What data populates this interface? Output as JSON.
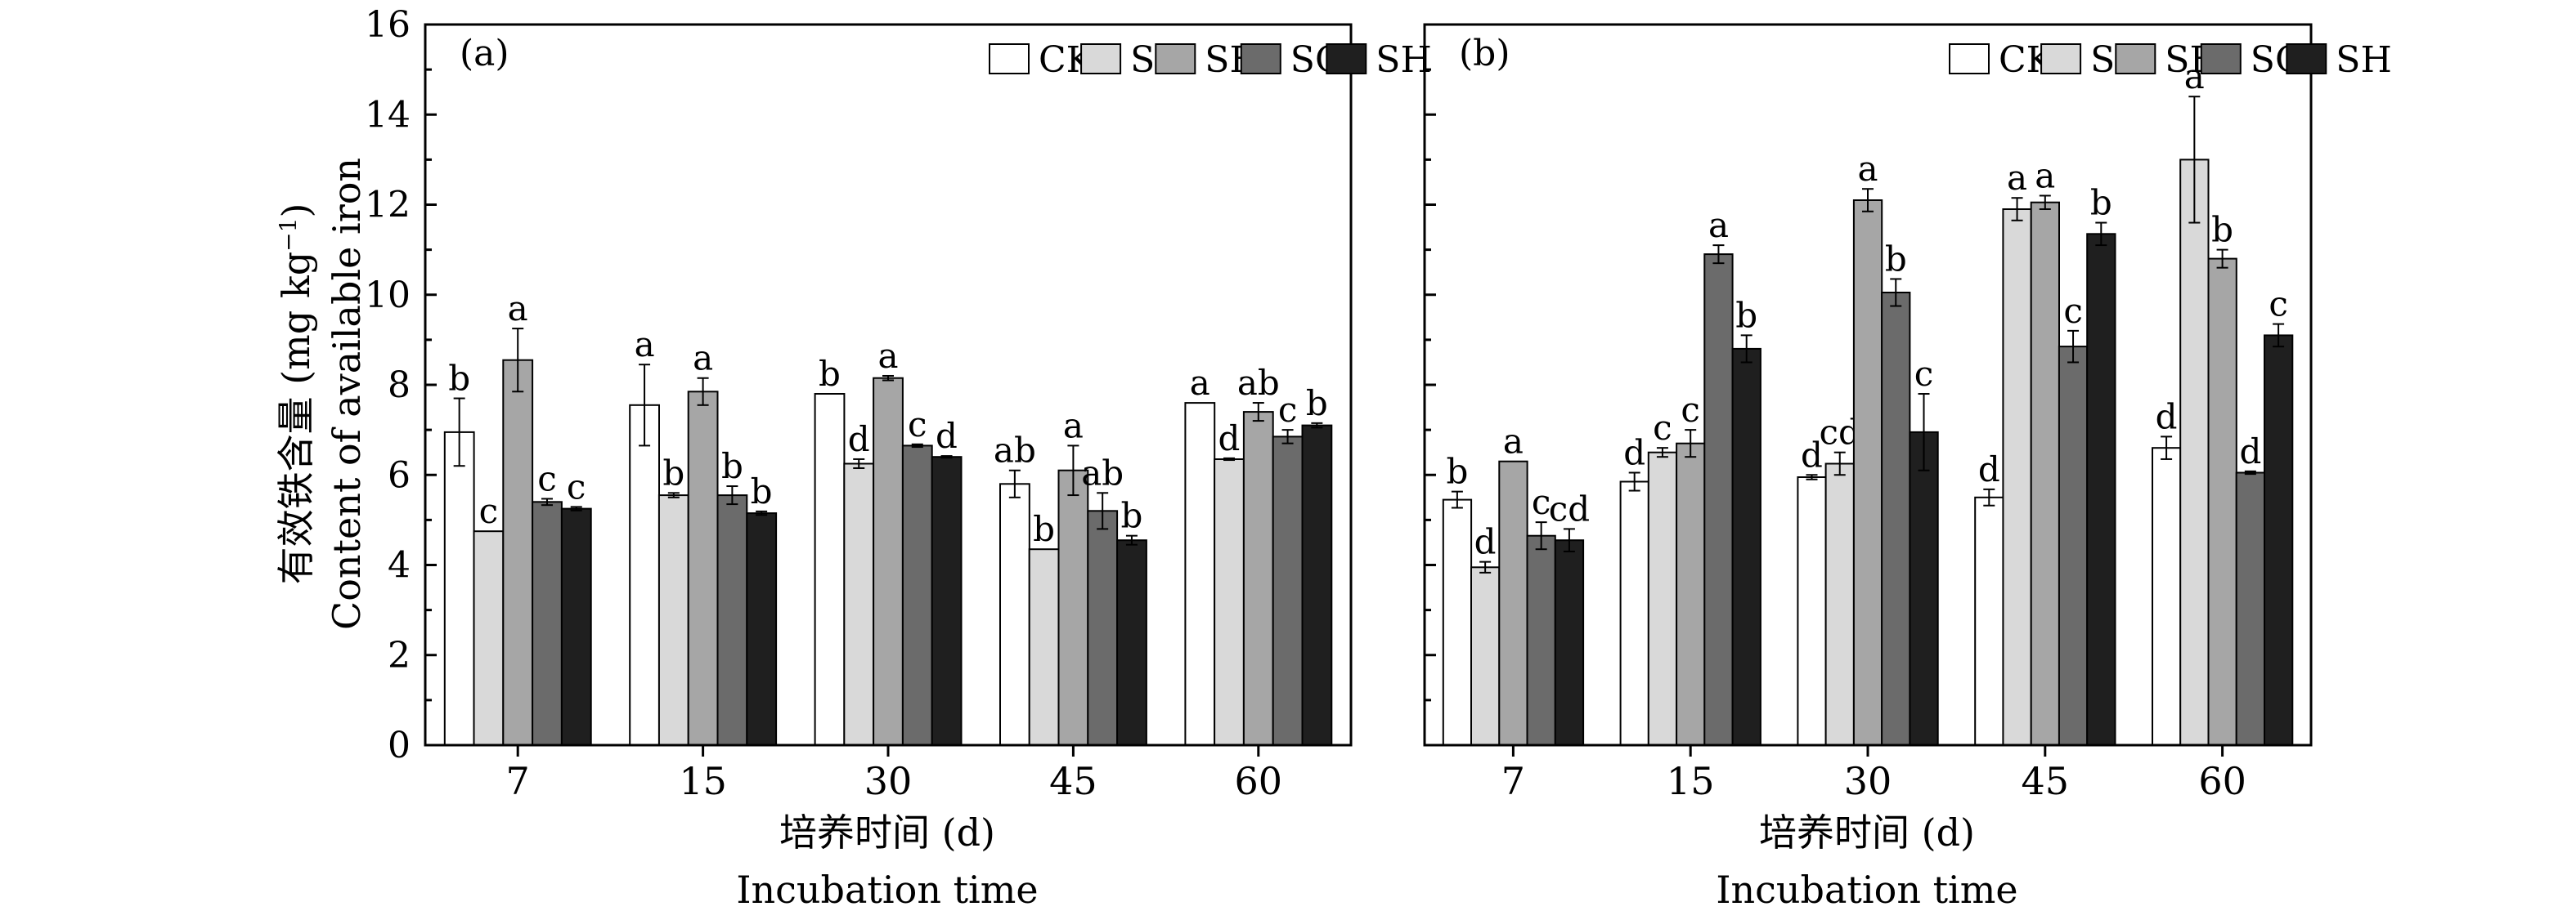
{
  "chart_data": {
    "type": "bar",
    "ylabel_cn": "有效铁含量 (mg kg",
    "ylabel_sup": "−1",
    "ylabel_close": ")",
    "ylabel_en": "Content of available iron",
    "xlabel_cn": "培养时间 (d)",
    "xlabel_en": "Incubation time",
    "ylim": [
      0,
      16
    ],
    "yticks": [
      "0",
      "2",
      "4",
      "6",
      "8",
      "10",
      "12",
      "14",
      "16"
    ],
    "categories": [
      "7",
      "15",
      "30",
      "45",
      "60"
    ],
    "legend_placement": "top-right",
    "legend": [
      {
        "name": "CK",
        "color": "#ffffff"
      },
      {
        "name": "S",
        "color": "#d9d9d9"
      },
      {
        "name": "SF",
        "color": "#a6a6a6"
      },
      {
        "name": "SG",
        "color": "#6b6b6b"
      },
      {
        "name": "SH",
        "color": "#1f1f1f"
      }
    ],
    "panels": [
      {
        "label": "(a)",
        "series": [
          {
            "name": "CK",
            "values": [
              6.95,
              7.55,
              7.8,
              5.8,
              7.6
            ],
            "errors": [
              0.75,
              0.9,
              0.0,
              0.3,
              0.0
            ],
            "letters": [
              "b",
              "a",
              "b",
              "ab",
              "a"
            ]
          },
          {
            "name": "S",
            "values": [
              4.75,
              5.55,
              6.25,
              4.35,
              6.35
            ],
            "errors": [
              0.0,
              0.05,
              0.1,
              0.0,
              0.02
            ],
            "letters": [
              "c",
              "b",
              "d",
              "b",
              "d"
            ]
          },
          {
            "name": "SF",
            "values": [
              8.55,
              7.85,
              8.15,
              6.1,
              7.4
            ],
            "errors": [
              0.7,
              0.3,
              0.05,
              0.55,
              0.2
            ],
            "letters": [
              "a",
              "a",
              "a",
              "a",
              "ab"
            ]
          },
          {
            "name": "SG",
            "values": [
              5.4,
              5.55,
              6.65,
              5.2,
              6.85
            ],
            "errors": [
              0.07,
              0.2,
              0.03,
              0.4,
              0.15
            ],
            "letters": [
              "c",
              "b",
              "c",
              "ab",
              "c"
            ]
          },
          {
            "name": "SH",
            "values": [
              5.25,
              5.15,
              6.4,
              4.55,
              7.1
            ],
            "errors": [
              0.04,
              0.04,
              0.02,
              0.1,
              0.05
            ],
            "letters": [
              "c",
              "b",
              "d",
              "b",
              "b"
            ]
          }
        ]
      },
      {
        "label": "(b)",
        "series": [
          {
            "name": "CK",
            "values": [
              5.45,
              5.85,
              5.95,
              5.5,
              6.6
            ],
            "errors": [
              0.18,
              0.2,
              0.05,
              0.18,
              0.25
            ],
            "letters": [
              "b",
              "d",
              "d",
              "d",
              "d"
            ]
          },
          {
            "name": "S",
            "values": [
              3.95,
              6.5,
              6.25,
              11.9,
              13.0
            ],
            "errors": [
              0.12,
              0.1,
              0.25,
              0.25,
              1.4
            ],
            "letters": [
              "d",
              "c",
              "cd",
              "a",
              "a"
            ]
          },
          {
            "name": "SF",
            "values": [
              6.3,
              6.7,
              12.1,
              12.05,
              10.8
            ],
            "errors": [
              0.0,
              0.3,
              0.25,
              0.15,
              0.2
            ],
            "letters": [
              "a",
              "c",
              "a",
              "a",
              "b"
            ]
          },
          {
            "name": "SG",
            "values": [
              4.65,
              10.9,
              10.05,
              8.85,
              6.05
            ],
            "errors": [
              0.3,
              0.2,
              0.3,
              0.35,
              0.03
            ],
            "letters": [
              "c",
              "a",
              "b",
              "c",
              "d"
            ]
          },
          {
            "name": "SH",
            "values": [
              4.55,
              8.8,
              6.95,
              11.35,
              9.1
            ],
            "errors": [
              0.25,
              0.3,
              0.85,
              0.25,
              0.25
            ],
            "letters": [
              "cd",
              "b",
              "c",
              "b",
              "c"
            ]
          }
        ]
      }
    ]
  }
}
